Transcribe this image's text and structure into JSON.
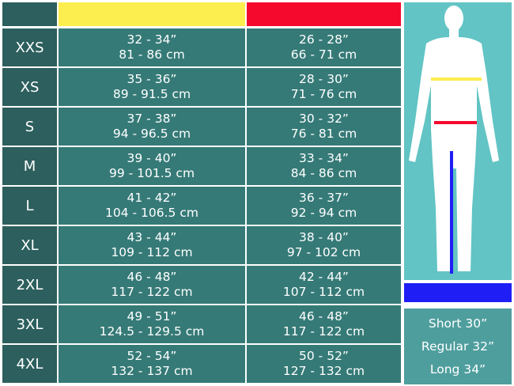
{
  "colors": {
    "chest": "#fcee4f",
    "waist": "#f50a2e",
    "inseam": "#1f1ff5",
    "size_bg": "#2c5f5d",
    "cell_bg": "#357a77"
  },
  "rows": [
    {
      "size": "XXS",
      "chest_in": "32 - 34”",
      "chest_cm": "81 - 86 cm",
      "waist_in": "26 - 28”",
      "waist_cm": "66 - 71 cm"
    },
    {
      "size": "XS",
      "chest_in": "35 - 36”",
      "chest_cm": "89 - 91.5 cm",
      "waist_in": "28 - 30”",
      "waist_cm": "71 - 76 cm"
    },
    {
      "size": "S",
      "chest_in": "37 - 38”",
      "chest_cm": "94 - 96.5 cm",
      "waist_in": "30 - 32”",
      "waist_cm": "76 - 81 cm"
    },
    {
      "size": "M",
      "chest_in": "39 - 40”",
      "chest_cm": "99 - 101.5 cm",
      "waist_in": "33 - 34”",
      "waist_cm": "84 - 86 cm"
    },
    {
      "size": "L",
      "chest_in": "41 - 42”",
      "chest_cm": "104 - 106.5 cm",
      "waist_in": "36 - 37”",
      "waist_cm": "92 - 94 cm"
    },
    {
      "size": "XL",
      "chest_in": "43 - 44”",
      "chest_cm": "109 - 112 cm",
      "waist_in": "38 - 40”",
      "waist_cm": "97 - 102 cm"
    },
    {
      "size": "2XL",
      "chest_in": "46 - 48”",
      "chest_cm": "117 - 122 cm",
      "waist_in": "42 - 44”",
      "waist_cm": "107 - 112 cm"
    },
    {
      "size": "3XL",
      "chest_in": "49 - 51”",
      "chest_cm": "124.5 - 129.5 cm",
      "waist_in": "46 - 48”",
      "waist_cm": "117 - 122 cm"
    },
    {
      "size": "4XL",
      "chest_in": "52 - 54”",
      "chest_cm": "132 - 137 cm",
      "waist_in": "50 - 52”",
      "waist_cm": "127 - 132 cm"
    }
  ],
  "inseam": [
    "Short 30”",
    "Regular 32”",
    "Long 34”"
  ]
}
